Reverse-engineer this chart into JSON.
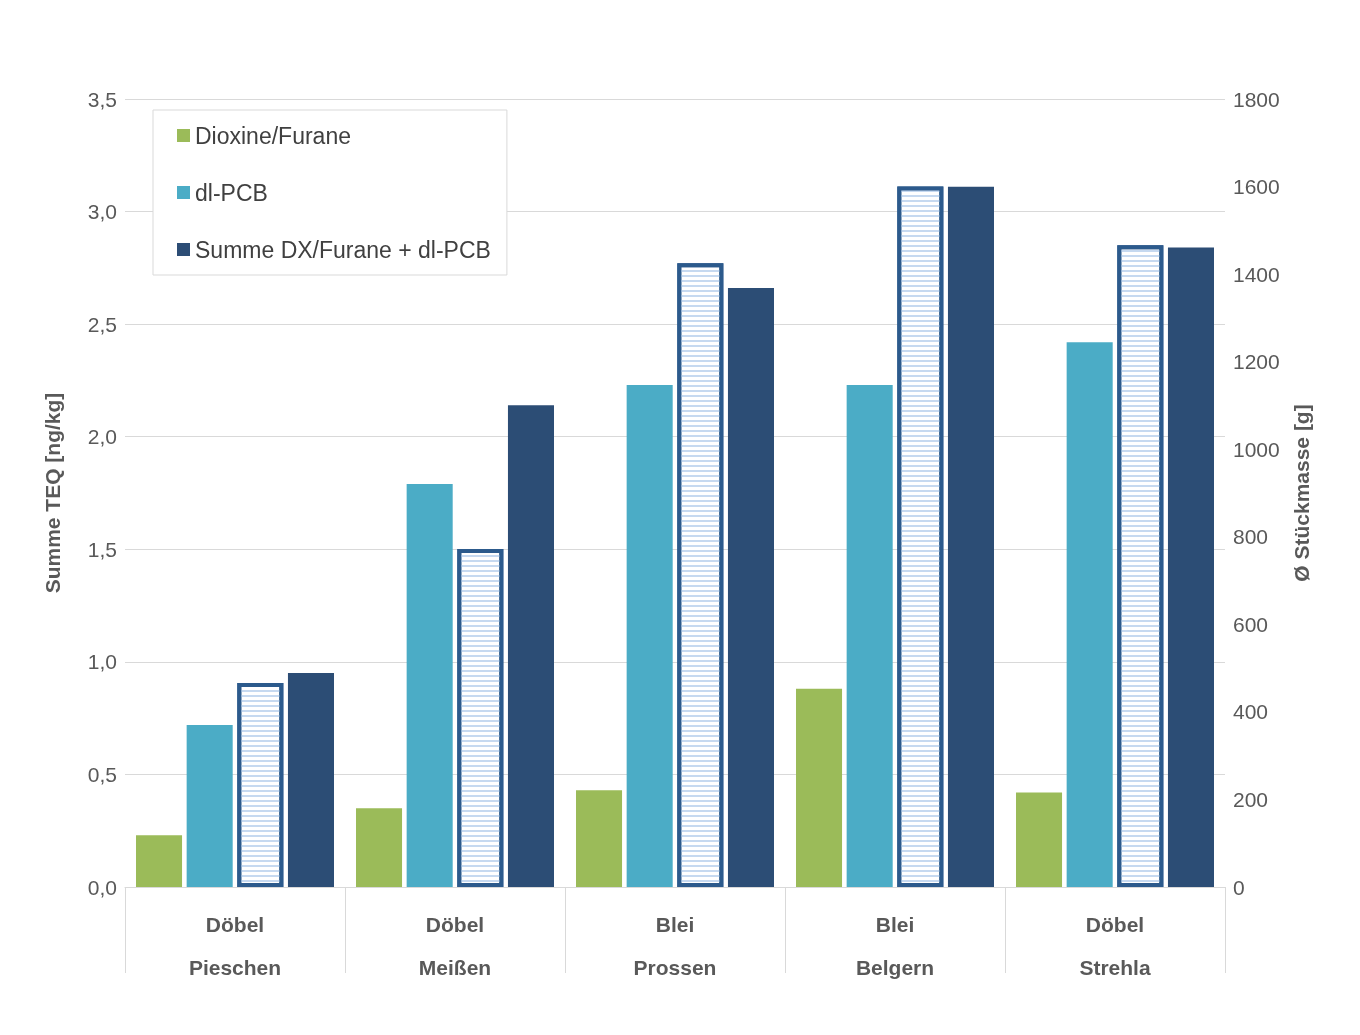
{
  "chart_data": {
    "type": "bar",
    "ylabel": "Summe TEQ [ng/kg]",
    "y2label": "Ø Stückmasse [g]",
    "categories": [
      "Döbel\nPieschen",
      "Döbel\nMeißen",
      "Blei\nProssen",
      "Blei\nBelgern",
      "Döbel\nStrehla"
    ],
    "series": [
      {
        "name": "Dioxine/Furane",
        "color": "#9bbb59",
        "values": [
          0.23,
          0.35,
          0.43,
          0.88,
          0.42
        ]
      },
      {
        "name": "dl-PCB",
        "color": "#4bacc6",
        "values": [
          0.72,
          1.79,
          2.23,
          2.23,
          2.42
        ]
      },
      {
        "color": "#ffffff",
        "axis": "y2",
        "values": [
          466,
          772,
          1425,
          1600,
          1466
        ]
      },
      {
        "name": "Summe DX/Furane + dl-PCB",
        "color": "#2c4d75",
        "values": [
          0.95,
          2.14,
          2.66,
          3.11,
          2.84
        ]
      }
    ],
    "ylim": [
      0,
      3.5
    ],
    "yticks": [
      {
        "value": 0,
        "label": "0,0"
      },
      {
        "value": 0.5,
        "label": "0,5"
      },
      {
        "value": 1,
        "label": "1,0"
      },
      {
        "value": 1.5,
        "label": "1,5"
      },
      {
        "value": 2,
        "label": "2,0"
      },
      {
        "value": 2.5,
        "label": "2,5"
      },
      {
        "value": 3,
        "label": "3,0"
      },
      {
        "value": 3.5,
        "label": "3,5"
      }
    ],
    "y2lim": [
      0,
      1800
    ],
    "y2ticks": [
      0,
      200,
      400,
      600,
      800,
      1000,
      1200,
      1400,
      1600,
      1800
    ],
    "grid": "y",
    "legend": "top left"
  }
}
